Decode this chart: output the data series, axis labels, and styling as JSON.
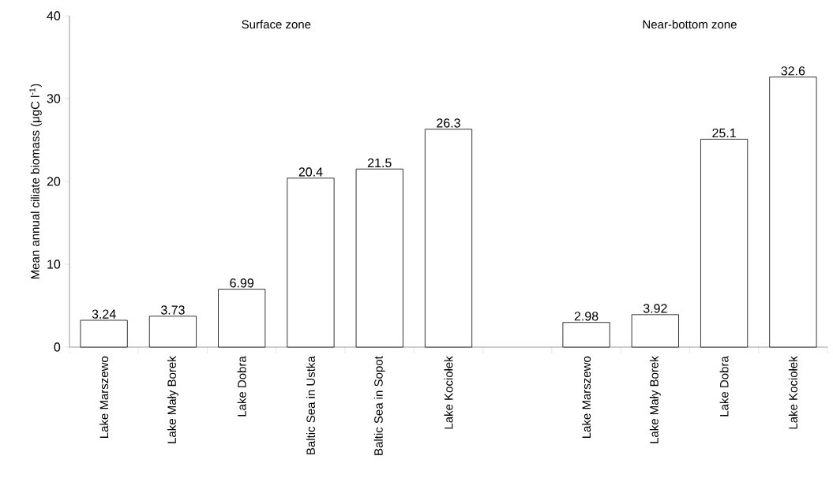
{
  "chart_data": {
    "type": "bar",
    "ylabel": "Mean annual ciliate biomass (μgC l$^{-1}$)",
    "categories": [
      "Lake Marszewo",
      "Lake Mały Borek",
      "Lake Dobra",
      "Baltic Sea in Ustka",
      "Baltic Sea in Sopot",
      "Lake Kociołek",
      null,
      "Lake Marszewo",
      "Lake Mały Borek",
      "Lake Dobra",
      "Lake Kociołek"
    ],
    "values": [
      3.24,
      3.73,
      6.99,
      20.4,
      21.5,
      26.3,
      null,
      2.98,
      3.92,
      25.1,
      32.6
    ],
    "color": "#ffffff",
    "ylim": [
      0,
      40
    ],
    "yticks": [
      0,
      10,
      20,
      30,
      40
    ],
    "grid": false,
    "data_labels": true,
    "annotations": [
      "Surface zone",
      "Near-bottom zone"
    ]
  }
}
